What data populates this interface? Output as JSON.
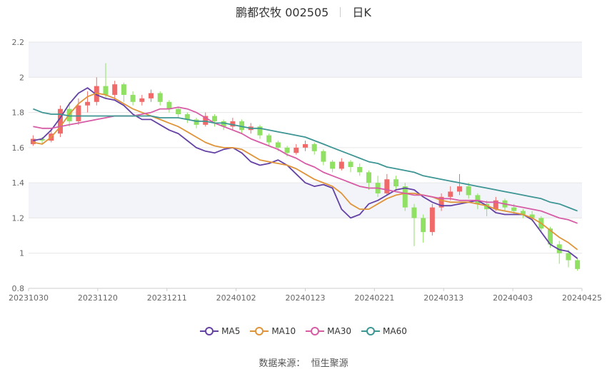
{
  "chart_data": {
    "type": "candlestick",
    "title": "鹏都农牧 002505",
    "subtitle": "日K",
    "ylim": [
      0.8,
      2.2
    ],
    "yticks": [
      "0.8",
      "1",
      "1.2",
      "1.4",
      "1.6",
      "1.8",
      "2",
      "2.2"
    ],
    "xticks": [
      "20231030",
      "20231120",
      "20231211",
      "20240102",
      "20240123",
      "20240221",
      "20240313",
      "20240403",
      "20240425"
    ],
    "colors": {
      "up": "#f06a6a",
      "down": "#8fe063",
      "MA5": "#6441a5",
      "MA10": "#e0943a",
      "MA30": "#d65ca5",
      "MA60": "#3d9594"
    },
    "ma_series": [
      {
        "name": "MA5",
        "color": "#6441a5",
        "values": [
          1.64,
          1.65,
          1.7,
          1.77,
          1.85,
          1.91,
          1.94,
          1.9,
          1.88,
          1.87,
          1.84,
          1.79,
          1.76,
          1.76,
          1.73,
          1.7,
          1.68,
          1.64,
          1.6,
          1.58,
          1.57,
          1.59,
          1.6,
          1.57,
          1.52,
          1.5,
          1.51,
          1.53,
          1.5,
          1.45,
          1.4,
          1.38,
          1.39,
          1.37,
          1.25,
          1.2,
          1.22,
          1.28,
          1.3,
          1.33,
          1.36,
          1.37,
          1.36,
          1.32,
          1.29,
          1.27,
          1.27,
          1.28,
          1.29,
          1.3,
          1.27,
          1.23,
          1.22,
          1.22,
          1.22,
          1.19,
          1.12,
          1.05,
          1.02,
          1.01,
          0.97
        ]
      },
      {
        "name": "MA10",
        "color": "#e0943a",
        "values": [
          1.63,
          1.62,
          1.66,
          1.72,
          1.79,
          1.85,
          1.89,
          1.91,
          1.9,
          1.88,
          1.85,
          1.82,
          1.8,
          1.78,
          1.76,
          1.74,
          1.72,
          1.69,
          1.66,
          1.63,
          1.61,
          1.6,
          1.6,
          1.59,
          1.56,
          1.53,
          1.52,
          1.51,
          1.5,
          1.48,
          1.45,
          1.42,
          1.4,
          1.38,
          1.34,
          1.28,
          1.25,
          1.25,
          1.28,
          1.31,
          1.33,
          1.34,
          1.34,
          1.33,
          1.32,
          1.3,
          1.29,
          1.29,
          1.29,
          1.28,
          1.27,
          1.25,
          1.24,
          1.23,
          1.22,
          1.2,
          1.17,
          1.13,
          1.09,
          1.06,
          1.02
        ]
      },
      {
        "name": "MA30",
        "color": "#d65ca5",
        "values": [
          1.72,
          1.71,
          1.71,
          1.72,
          1.73,
          1.74,
          1.75,
          1.76,
          1.77,
          1.78,
          1.78,
          1.78,
          1.79,
          1.8,
          1.82,
          1.82,
          1.83,
          1.82,
          1.8,
          1.77,
          1.74,
          1.72,
          1.7,
          1.68,
          1.65,
          1.63,
          1.61,
          1.59,
          1.56,
          1.54,
          1.51,
          1.49,
          1.46,
          1.44,
          1.42,
          1.4,
          1.38,
          1.37,
          1.37,
          1.36,
          1.35,
          1.34,
          1.33,
          1.33,
          1.32,
          1.31,
          1.31,
          1.3,
          1.3,
          1.3,
          1.29,
          1.29,
          1.28,
          1.27,
          1.26,
          1.25,
          1.24,
          1.22,
          1.2,
          1.19,
          1.17
        ]
      },
      {
        "name": "MA60",
        "color": "#3d9594",
        "values": [
          1.82,
          1.8,
          1.79,
          1.79,
          1.78,
          1.78,
          1.78,
          1.78,
          1.78,
          1.78,
          1.78,
          1.78,
          1.78,
          1.78,
          1.77,
          1.77,
          1.77,
          1.76,
          1.75,
          1.75,
          1.74,
          1.74,
          1.73,
          1.72,
          1.71,
          1.71,
          1.7,
          1.69,
          1.68,
          1.67,
          1.66,
          1.64,
          1.62,
          1.6,
          1.58,
          1.56,
          1.54,
          1.52,
          1.51,
          1.49,
          1.48,
          1.47,
          1.46,
          1.44,
          1.43,
          1.42,
          1.41,
          1.4,
          1.39,
          1.38,
          1.37,
          1.36,
          1.35,
          1.34,
          1.33,
          1.32,
          1.31,
          1.29,
          1.28,
          1.26,
          1.24
        ]
      }
    ],
    "candles": [
      [
        1.62,
        1.65,
        1.61,
        1.67
      ],
      [
        1.65,
        1.64,
        1.62,
        1.66
      ],
      [
        1.64,
        1.68,
        1.63,
        1.71
      ],
      [
        1.68,
        1.82,
        1.66,
        1.84
      ],
      [
        1.82,
        1.75,
        1.72,
        1.86
      ],
      [
        1.75,
        1.84,
        1.73,
        1.88
      ],
      [
        1.84,
        1.86,
        1.8,
        1.92
      ],
      [
        1.86,
        1.95,
        1.84,
        2.0
      ],
      [
        1.95,
        1.9,
        1.88,
        2.08
      ],
      [
        1.9,
        1.96,
        1.87,
        1.98
      ],
      [
        1.96,
        1.9,
        1.86,
        1.97
      ],
      [
        1.9,
        1.86,
        1.84,
        1.92
      ],
      [
        1.86,
        1.88,
        1.84,
        1.9
      ],
      [
        1.88,
        1.91,
        1.86,
        1.93
      ],
      [
        1.91,
        1.86,
        1.84,
        1.92
      ],
      [
        1.86,
        1.82,
        1.8,
        1.87
      ],
      [
        1.82,
        1.79,
        1.77,
        1.83
      ],
      [
        1.79,
        1.76,
        1.74,
        1.8
      ],
      [
        1.76,
        1.73,
        1.71,
        1.77
      ],
      [
        1.73,
        1.78,
        1.72,
        1.8
      ],
      [
        1.78,
        1.75,
        1.72,
        1.79
      ],
      [
        1.75,
        1.72,
        1.7,
        1.76
      ],
      [
        1.72,
        1.75,
        1.7,
        1.77
      ],
      [
        1.75,
        1.7,
        1.68,
        1.76
      ],
      [
        1.7,
        1.72,
        1.68,
        1.74
      ],
      [
        1.72,
        1.67,
        1.65,
        1.73
      ],
      [
        1.67,
        1.63,
        1.61,
        1.68
      ],
      [
        1.63,
        1.6,
        1.58,
        1.64
      ],
      [
        1.6,
        1.57,
        1.55,
        1.61
      ],
      [
        1.57,
        1.6,
        1.56,
        1.62
      ],
      [
        1.6,
        1.62,
        1.58,
        1.64
      ],
      [
        1.62,
        1.58,
        1.56,
        1.63
      ],
      [
        1.58,
        1.52,
        1.5,
        1.59
      ],
      [
        1.52,
        1.48,
        1.46,
        1.53
      ],
      [
        1.48,
        1.52,
        1.47,
        1.54
      ],
      [
        1.52,
        1.49,
        1.46,
        1.53
      ],
      [
        1.49,
        1.46,
        1.44,
        1.51
      ],
      [
        1.46,
        1.4,
        1.36,
        1.47
      ],
      [
        1.4,
        1.34,
        1.32,
        1.44
      ],
      [
        1.34,
        1.42,
        1.33,
        1.45
      ],
      [
        1.42,
        1.38,
        1.36,
        1.44
      ],
      [
        1.38,
        1.26,
        1.24,
        1.4
      ],
      [
        1.26,
        1.2,
        1.04,
        1.28
      ],
      [
        1.2,
        1.12,
        1.06,
        1.22
      ],
      [
        1.12,
        1.26,
        1.1,
        1.28
      ],
      [
        1.26,
        1.32,
        1.24,
        1.34
      ],
      [
        1.32,
        1.35,
        1.3,
        1.38
      ],
      [
        1.35,
        1.38,
        1.33,
        1.45
      ],
      [
        1.38,
        1.33,
        1.31,
        1.4
      ],
      [
        1.33,
        1.28,
        1.25,
        1.34
      ],
      [
        1.28,
        1.25,
        1.21,
        1.3
      ],
      [
        1.25,
        1.3,
        1.24,
        1.32
      ],
      [
        1.3,
        1.26,
        1.24,
        1.31
      ],
      [
        1.26,
        1.24,
        1.22,
        1.28
      ],
      [
        1.24,
        1.22,
        1.2,
        1.25
      ],
      [
        1.22,
        1.2,
        1.18,
        1.24
      ],
      [
        1.2,
        1.14,
        1.12,
        1.21
      ],
      [
        1.14,
        1.05,
        1.03,
        1.15
      ],
      [
        1.05,
        1.0,
        0.94,
        1.07
      ],
      [
        1.0,
        0.96,
        0.92,
        1.02
      ],
      [
        0.96,
        0.91,
        0.9,
        0.97
      ]
    ],
    "legend_position": "bottom"
  },
  "source_label": "数据来源：",
  "source_name": "恒生聚源"
}
